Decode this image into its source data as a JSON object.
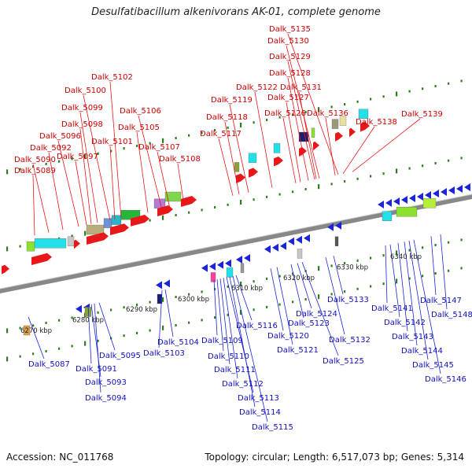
{
  "title": "Desulfatibacillum alkenivorans AK-01, complete genome",
  "footer": {
    "accession": "Accession: NC_011768",
    "summary": "Topology: circular; Length: 6,517,073 bp; Genes: 5,314"
  },
  "colors": {
    "forward_strand": "#e8171a",
    "reverse_strand": "#1c25d6",
    "forward_label": "#cc0000",
    "reverse_label": "#1010c0",
    "backbone": "#888888",
    "tick": "#2e7d1e",
    "scale_text": "#222222"
  },
  "scale_labels": [
    "6270 kbp",
    "6280 kbp",
    "6290 kbp",
    "6300 kbp",
    "6310 kbp",
    "6320 kbp",
    "6330 kbp",
    "6340 kbp"
  ],
  "forward_genes": [
    "Dalk_5089",
    "Dalk_5090",
    "Dalk_5092",
    "Dalk_5096",
    "Dalk_5097",
    "Dalk_5098",
    "Dalk_5099",
    "Dalk_5100",
    "Dalk_5101",
    "Dalk_5102",
    "Dalk_5105",
    "Dalk_5106",
    "Dalk_5107",
    "Dalk_5108",
    "Dalk_5117",
    "Dalk_5118",
    "Dalk_5119",
    "Dalk_5122",
    "Dalk_5126",
    "Dalk_5127",
    "Dalk_5128",
    "Dalk_5129",
    "Dalk_5130",
    "Dalk_5131",
    "Dalk_5135",
    "Dalk_5136",
    "Dalk_5138",
    "Dalk_5139"
  ],
  "reverse_genes": [
    "Dalk_5087",
    "Dalk_5091",
    "Dalk_5093",
    "Dalk_5094",
    "Dalk_5095",
    "Dalk_5103",
    "Dalk_5104",
    "Dalk_5109",
    "Dalk_5110",
    "Dalk_5111",
    "Dalk_5112",
    "Dalk_5113",
    "Dalk_5114",
    "Dalk_5115",
    "Dalk_5116",
    "Dalk_5120",
    "Dalk_5121",
    "Dalk_5123",
    "Dalk_5124",
    "Dalk_5125",
    "Dalk_5132",
    "Dalk_5133",
    "Dalk_5141",
    "Dalk_5142",
    "Dalk_5143",
    "Dalk_5144",
    "Dalk_5145",
    "Dalk_5146",
    "Dalk_5147",
    "Dalk_5148"
  ]
}
